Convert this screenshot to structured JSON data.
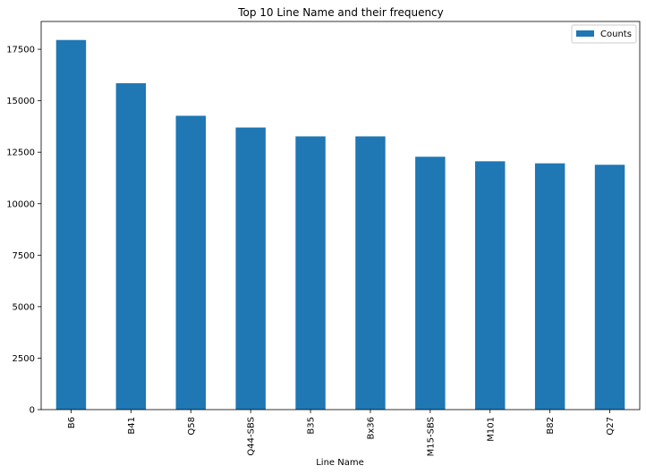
{
  "chart_data": {
    "type": "bar",
    "title": "Top 10 Line Name and their frequency",
    "xlabel": "Line Name",
    "ylabel": "",
    "categories": [
      "B6",
      "B41",
      "Q58",
      "Q44-SBS",
      "B35",
      "Bx36",
      "M15-SBS",
      "M101",
      "B82",
      "Q27"
    ],
    "series": [
      {
        "name": "Counts",
        "values": [
          17950,
          15850,
          14270,
          13700,
          13270,
          13270,
          12280,
          12060,
          11960,
          11890
        ]
      }
    ],
    "yticks": [
      0,
      2500,
      5000,
      7500,
      10000,
      12500,
      15000,
      17500
    ],
    "ylim": [
      0,
      18850
    ],
    "grid": false,
    "legend_position": "top-right",
    "colors": {
      "bar": "#1f77b4",
      "axis": "#000000",
      "legend_border": "#cccccc"
    }
  }
}
